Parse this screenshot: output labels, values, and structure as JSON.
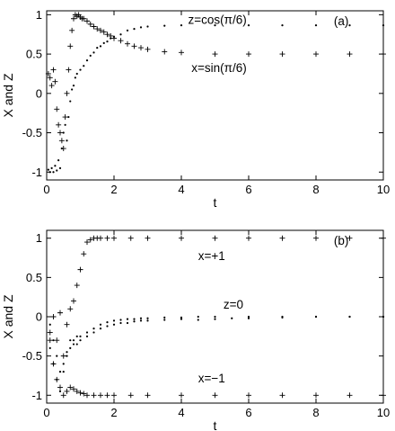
{
  "chart_data": [
    {
      "type": "scatter",
      "panel_label": "(a)",
      "xlabel": "t",
      "ylabel": "X and Z",
      "xlim": [
        0,
        10
      ],
      "ylim": [
        -1.1,
        1.05
      ],
      "xticks": [
        0,
        2,
        4,
        6,
        8,
        10
      ],
      "yticks": [
        -1,
        -0.5,
        0,
        0.5,
        1
      ],
      "ytick_labels": [
        "-1",
        "-0.5",
        "0",
        "0.5",
        "1"
      ],
      "grid": false,
      "annotations": [
        {
          "text": "z=cos(π/6)",
          "x": 4.2,
          "y": 0.94
        },
        {
          "text": "x=sin(π/6)",
          "x": 4.3,
          "y": 0.33
        }
      ],
      "series": [
        {
          "marker": "dot",
          "x": [
            0.05,
            0.1,
            0.15,
            0.2,
            0.25,
            0.3,
            0.35,
            0.4,
            0.45,
            0.5,
            0.55,
            0.6,
            0.65,
            0.7,
            0.75,
            0.8,
            0.85,
            0.9,
            1.0,
            1.1,
            1.2,
            1.3,
            1.4,
            1.5,
            1.6,
            1.7,
            1.8,
            1.9,
            2.0,
            2.2,
            2.4,
            2.6,
            2.8,
            3.0,
            3.5,
            4.0,
            5.0,
            6.0,
            7.0,
            8.0,
            9.0,
            10.0
          ],
          "y": [
            -0.97,
            -1.0,
            -0.95,
            -1.0,
            -0.92,
            -0.98,
            -0.85,
            -0.95,
            -0.7,
            -0.5,
            -0.4,
            -0.6,
            -0.3,
            -0.1,
            0.05,
            0.1,
            0.2,
            0.25,
            0.3,
            0.35,
            0.42,
            0.48,
            0.52,
            0.58,
            0.6,
            0.64,
            0.66,
            0.7,
            0.72,
            0.75,
            0.8,
            0.82,
            0.84,
            0.85,
            0.86,
            0.866,
            0.866,
            0.866,
            0.866,
            0.866,
            0.866,
            0.866
          ]
        },
        {
          "marker": "plus",
          "x": [
            0.05,
            0.1,
            0.15,
            0.2,
            0.25,
            0.3,
            0.35,
            0.4,
            0.45,
            0.5,
            0.55,
            0.6,
            0.65,
            0.7,
            0.75,
            0.8,
            0.85,
            0.9,
            0.95,
            1.0,
            1.05,
            1.1,
            1.2,
            1.3,
            1.4,
            1.5,
            1.6,
            1.7,
            1.8,
            1.9,
            2.0,
            2.2,
            2.4,
            2.6,
            2.8,
            3.0,
            3.5,
            4.0,
            5.0,
            6.0,
            7.0,
            8.0,
            9.0,
            10.0
          ],
          "y": [
            0.25,
            0.2,
            0.1,
            0.3,
            0.15,
            -0.2,
            -0.4,
            -0.5,
            -0.6,
            -0.7,
            -0.3,
            0.0,
            0.3,
            0.6,
            0.8,
            0.95,
            1.0,
            0.98,
            1.0,
            0.97,
            0.95,
            0.95,
            0.92,
            0.88,
            0.85,
            0.82,
            0.8,
            0.78,
            0.75,
            0.73,
            0.7,
            0.67,
            0.63,
            0.6,
            0.58,
            0.56,
            0.53,
            0.52,
            0.5,
            0.5,
            0.5,
            0.5,
            0.5,
            0.5
          ]
        }
      ]
    },
    {
      "type": "scatter",
      "panel_label": "(b)",
      "xlabel": "t",
      "ylabel": "X and Z",
      "xlim": [
        0,
        10
      ],
      "ylim": [
        -1.1,
        1.1
      ],
      "xticks": [
        0,
        2,
        4,
        6,
        8,
        10
      ],
      "yticks": [
        -1,
        -0.5,
        0,
        0.5,
        1
      ],
      "ytick_labels": [
        "-1",
        "-0.5",
        "0",
        "0.5",
        "1"
      ],
      "grid": false,
      "annotations": [
        {
          "text": "x=+1",
          "x": 4.5,
          "y": 0.78
        },
        {
          "text": "z=0",
          "x": 5.25,
          "y": 0.16
        },
        {
          "text": "x=−1",
          "x": 4.5,
          "y": -0.78
        }
      ],
      "series": [
        {
          "marker": "plus",
          "x": [
            0.1,
            0.2,
            0.3,
            0.4,
            0.5,
            0.6,
            0.7,
            0.8,
            0.9,
            1.0,
            1.1,
            1.2,
            1.3,
            1.4,
            1.5,
            1.6,
            1.8,
            2.0,
            2.5,
            3.0,
            4.0,
            5.0,
            6.0,
            7.0,
            8.0,
            9.0,
            10.0
          ],
          "y": [
            -0.2,
            0.0,
            -0.3,
            0.05,
            -0.5,
            -0.1,
            0.1,
            0.2,
            0.4,
            0.6,
            0.8,
            0.95,
            0.98,
            1.0,
            1.0,
            1.0,
            1.0,
            1.0,
            1.0,
            1.0,
            1.0,
            1.0,
            1.0,
            1.0,
            1.0,
            1.0,
            1.0
          ]
        },
        {
          "marker": "plus",
          "x": [
            0.1,
            0.2,
            0.3,
            0.4,
            0.5,
            0.6,
            0.7,
            0.8,
            0.9,
            1.0,
            1.1,
            1.2,
            1.4,
            1.6,
            1.8,
            2.0,
            2.5,
            3.0,
            4.0,
            5.0,
            6.0,
            7.0,
            8.0,
            9.0,
            10.0
          ],
          "y": [
            -0.3,
            -0.6,
            -0.8,
            -0.9,
            -1.0,
            -0.95,
            -0.9,
            -0.92,
            -0.95,
            -0.97,
            -0.98,
            -1.0,
            -1.0,
            -1.0,
            -1.0,
            -1.0,
            -1.0,
            -1.0,
            -1.0,
            -1.0,
            -1.0,
            -1.0,
            -1.0,
            -1.0,
            -1.0
          ]
        },
        {
          "marker": "dot",
          "x": [
            0.1,
            0.2,
            0.3,
            0.4,
            0.5,
            0.6,
            0.7,
            0.8,
            0.9,
            1.0,
            1.2,
            1.4,
            1.6,
            1.8,
            2.0,
            2.2,
            2.4,
            2.6,
            2.8,
            3.0,
            3.5,
            4.0,
            4.5,
            5.0,
            5.5,
            6.0,
            7.0,
            8.0,
            9.0,
            10.0
          ],
          "y": [
            -0.4,
            -0.6,
            -0.8,
            -0.95,
            -0.7,
            -0.5,
            -0.3,
            -0.35,
            -0.25,
            -0.3,
            -0.25,
            -0.2,
            -0.15,
            -0.12,
            -0.1,
            -0.08,
            -0.08,
            -0.06,
            -0.05,
            -0.05,
            -0.04,
            -0.03,
            -0.04,
            -0.03,
            -0.02,
            -0.02,
            -0.01,
            0.0,
            0.0,
            0.0
          ]
        },
        {
          "marker": "dot",
          "x": [
            0.1,
            0.2,
            0.3,
            0.4,
            0.5,
            0.6,
            0.7,
            0.8,
            0.9,
            1.0,
            1.2,
            1.4,
            1.6,
            1.8,
            2.0,
            2.2,
            2.4,
            2.6,
            2.8,
            3.0,
            3.5,
            4.0,
            4.5,
            5.0,
            6.0,
            7.0,
            8.0,
            9.0,
            10.0
          ],
          "y": [
            -0.1,
            -0.3,
            -0.5,
            -0.7,
            -0.6,
            -0.45,
            -0.4,
            -0.3,
            -0.35,
            -0.25,
            -0.2,
            -0.15,
            -0.1,
            -0.07,
            -0.05,
            -0.04,
            -0.03,
            -0.03,
            -0.02,
            -0.02,
            -0.01,
            -0.01,
            0.0,
            0.0,
            0.0,
            0.0,
            0.0,
            0.0,
            0.0
          ]
        }
      ]
    }
  ]
}
